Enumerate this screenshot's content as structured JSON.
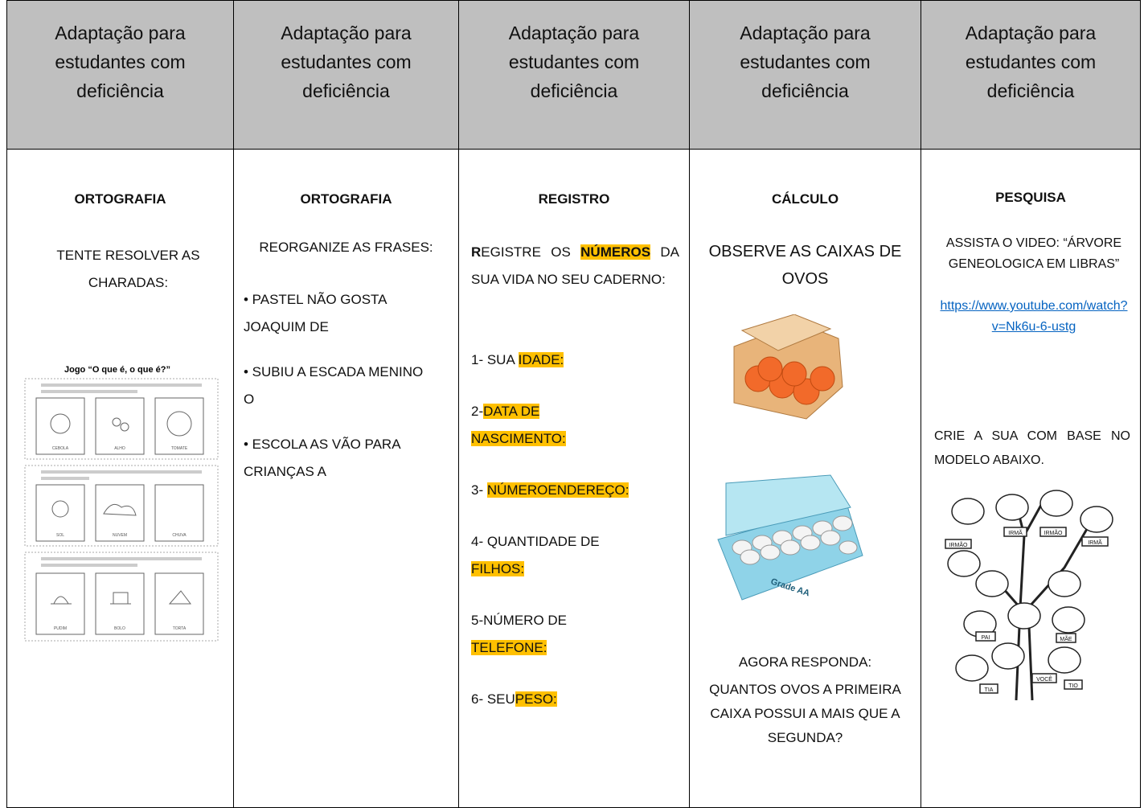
{
  "header": {
    "columns": [
      "Adaptação para estudantes com deficiência",
      "Adaptação para estudantes com deficiência",
      "Adaptação para estudantes com deficiência",
      "Adaptação para estudantes com deficiência",
      "Adaptação para estudantes com deficiência"
    ]
  },
  "columns": [
    {
      "title": "ORTOGRAFIA",
      "instruction": "TENTE RESOLVER AS CHARADAS:",
      "worksheet": {
        "title": "Jogo “O que é, o que é?”",
        "labels": [
          "CEBOLA",
          "ALHO",
          "TOMATE",
          "SOL",
          "NUVEM",
          "CHUVA",
          "PUDIM",
          "BOLO",
          "TORTA"
        ]
      }
    },
    {
      "title": "ORTOGRAFIA",
      "instruction": "REORGANIZE AS FRASES:",
      "items": [
        "• PASTEL NÃO GOSTA JOAQUIM DE",
        "• SUBIU A ESCADA MENINO O",
        "• ESCOLA AS VÃO PARA CRIANÇAS A"
      ]
    },
    {
      "title": "REGISTRO",
      "intro": {
        "first": "R",
        "rest": "EGISTRE OS ",
        "keyword": "NÚMEROS",
        "end": " DA SUA VIDA NO SEU CADERNO:"
      },
      "items": [
        {
          "label": "1- SUA ",
          "field": "IDADE:"
        },
        {
          "label": "2-",
          "field": "DATA DE NASCIMENTO:"
        },
        {
          "label": "3- ",
          "field": "NÚMEROENDEREÇO:"
        },
        {
          "label": "4- QUANTIDADE DE ",
          "field": "FILHOS:"
        },
        {
          "label": "5-NÚMERO DE ",
          "field": "TELEFONE:"
        },
        {
          "label": "6- SEU",
          "field": "PESO:"
        }
      ]
    },
    {
      "title": "CÁLCULO",
      "instruction": "OBSERVE AS CAIXAS DE OVOS",
      "carton_label": "Grade AA",
      "prompt": "AGORA RESPONDA:",
      "question": "QUANTOS OVOS A PRIMEIRA CAIXA POSSUI A MAIS QUE A SEGUNDA?"
    },
    {
      "title": "PESQUISA",
      "instruction": "ASSISTA O VIDEO: “ÁRVORE GENEOLOGICA EM LIBRAS”",
      "link": "https://www.youtube.com/watch?v=Nk6u-6-ustg",
      "instruction2": "CRIE A SUA COM BASE NO MODELO ABAIXO.",
      "tree_labels": [
        "IRMÃ",
        "IRMÃO",
        "IRMÃO",
        "IRMÃ",
        "PAI",
        "MÃE",
        "VOCÊ",
        "TIA",
        "TIO"
      ]
    }
  ]
}
